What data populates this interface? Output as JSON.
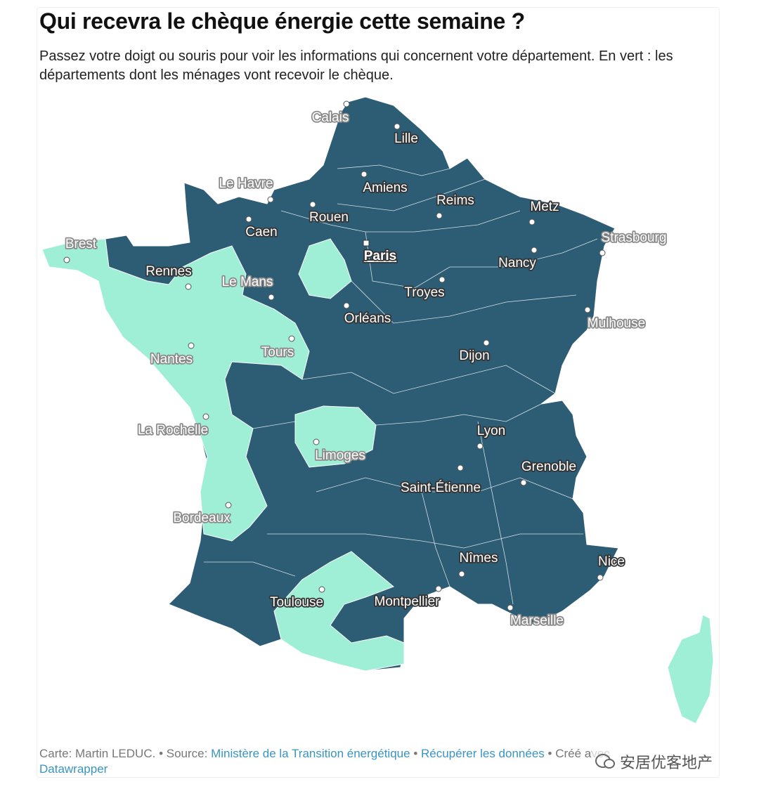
{
  "header": {
    "title": "Qui recevra le chèque énergie cette semaine ?",
    "subtitle": "Passez votre doigt ou souris pour voir les informations qui concernent votre département. En vert : les départements dont les ménages vont recevoir le chèque."
  },
  "map": {
    "cities": [
      "Calais",
      "Lille",
      "Le Havre",
      "Amiens",
      "Reims",
      "Metz",
      "Rouen",
      "Caen",
      "Strasbourg",
      "Brest",
      "Paris",
      "Rennes",
      "Nancy",
      "Le Mans",
      "Troyes",
      "Orléans",
      "Mulhouse",
      "Tours",
      "Nantes",
      "Dijon",
      "La Rochelle",
      "Lyon",
      "Limoges",
      "Grenoble",
      "Saint-Étienne",
      "Bordeaux",
      "Nîmes",
      "Nice",
      "Toulouse",
      "Montpellier",
      "Marseille"
    ]
  },
  "footer": {
    "credit": "Carte: Martin LEDUC.",
    "separator": "•",
    "source_label": "Source:",
    "source_link": "Ministère de la Transition énergétique",
    "data_link": "Récupérer les données",
    "created": "Créé avec",
    "tool": "Datawrapper"
  },
  "watermark": "安居优客地产"
}
